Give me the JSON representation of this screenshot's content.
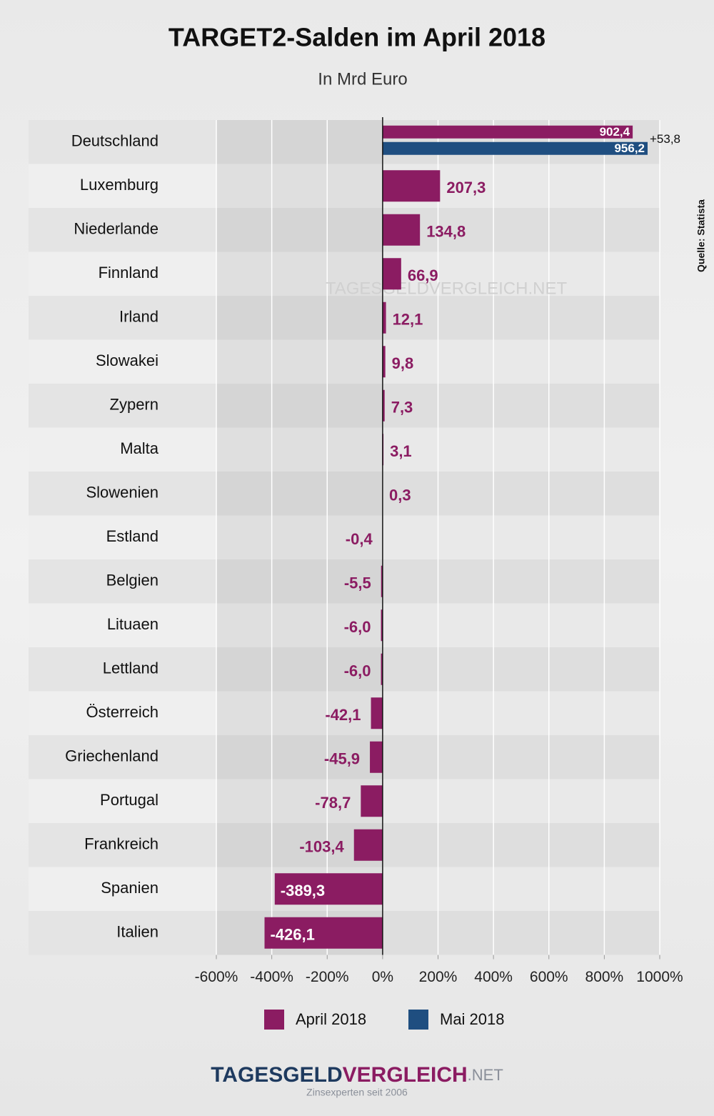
{
  "chart_data": {
    "type": "bar",
    "orientation": "horizontal",
    "title": "TARGET2-Salden im April 2018",
    "subtitle": "In Mrd Euro",
    "source": "Quelle: Statista",
    "watermark": "TAGESGELDVERGLEICH.NET",
    "annotation": "+53,8",
    "categories": [
      "Deutschland",
      "Luxemburg",
      "Niederlande",
      "Finnland",
      "Irland",
      "Slowakei",
      "Zypern",
      "Malta",
      "Slowenien",
      "Estland",
      "Belgien",
      "Lituaen",
      "Lettland",
      "Österreich",
      "Griechenland",
      "Portugal",
      "Frankreich",
      "Spanien",
      "Italien"
    ],
    "series": [
      {
        "name": "April 2018",
        "color": "#8b1c62",
        "values": [
          902.4,
          207.3,
          134.8,
          66.9,
          12.1,
          9.8,
          7.3,
          3.1,
          0.3,
          -0.4,
          -5.5,
          -6.0,
          -6.0,
          -42.1,
          -45.9,
          -78.7,
          -103.4,
          -389.3,
          -426.1
        ],
        "value_labels": [
          "902,4",
          "207,3",
          "134,8",
          "66,9",
          "12,1",
          "9,8",
          "7,3",
          "3,1",
          "0,3",
          "-0,4",
          "-5,5",
          "-6,0",
          "-6,0",
          "-42,1",
          "-45,9",
          "-78,7",
          "-103,4",
          "-389,3",
          "-426,1"
        ]
      },
      {
        "name": "Mai 2018",
        "color": "#1f4e80",
        "values": [
          956.2,
          null,
          null,
          null,
          null,
          null,
          null,
          null,
          null,
          null,
          null,
          null,
          null,
          null,
          null,
          null,
          null,
          null,
          null
        ],
        "value_labels": [
          "956,2",
          null,
          null,
          null,
          null,
          null,
          null,
          null,
          null,
          null,
          null,
          null,
          null,
          null,
          null,
          null,
          null,
          null,
          null
        ]
      }
    ],
    "xlim": [
      -600,
      1000
    ],
    "xticks": [
      {
        "value": -600,
        "label": "-600%"
      },
      {
        "value": -400,
        "label": "-400%"
      },
      {
        "value": -200,
        "label": "-200%"
      },
      {
        "value": 0,
        "label": "0%"
      },
      {
        "value": 200,
        "label": "200%"
      },
      {
        "value": 400,
        "label": "400%"
      },
      {
        "value": 600,
        "label": "600%"
      },
      {
        "value": 800,
        "label": "800%"
      },
      {
        "value": 1000,
        "label": "1000%"
      }
    ],
    "grid": true,
    "legend": "bottom"
  },
  "footer": {
    "logo": [
      "TAGESGELD",
      "VERGLEICH",
      ".NET"
    ],
    "tagline": "Zinsexperten seit 2006"
  }
}
